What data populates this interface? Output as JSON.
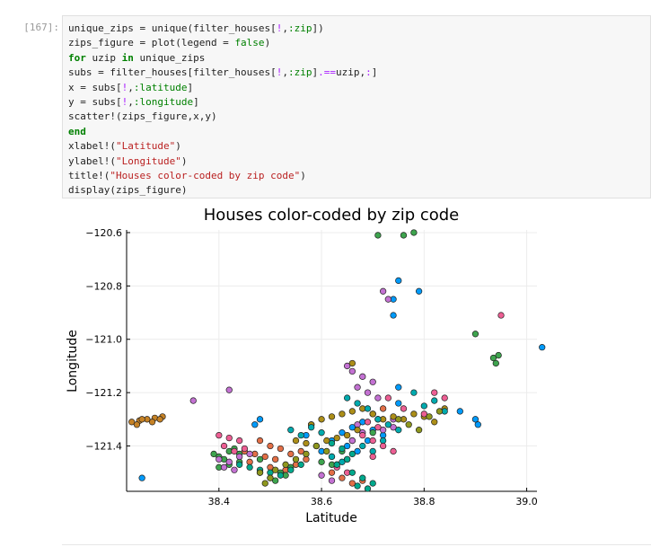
{
  "cell": {
    "prompt": "[167]:",
    "code_lines": [
      [
        {
          "t": "unique_zips = unique(filter_houses["
        },
        {
          "t": "!",
          "c": "op"
        },
        {
          "t": ",",
          "c": ""
        },
        {
          "t": ":zip",
          "c": "sym"
        },
        {
          "t": "])"
        }
      ],
      [
        {
          "t": "zips_figure = plot(legend = "
        },
        {
          "t": "false",
          "c": "sym"
        },
        {
          "t": ")"
        }
      ],
      [
        {
          "t": "for",
          "c": "kw"
        },
        {
          "t": " uzip "
        },
        {
          "t": "in",
          "c": "kw"
        },
        {
          "t": " unique_zips"
        }
      ],
      [
        {
          "t": "subs = filter_houses[filter_houses["
        },
        {
          "t": "!",
          "c": "op"
        },
        {
          "t": ","
        },
        {
          "t": ":zip",
          "c": "sym"
        },
        {
          "t": "]"
        },
        {
          "t": ".==",
          "c": "op"
        },
        {
          "t": "uzip,"
        },
        {
          "t": ":",
          "c": "op"
        },
        {
          "t": "]"
        }
      ],
      [
        {
          "t": "x = subs["
        },
        {
          "t": "!",
          "c": "op"
        },
        {
          "t": ","
        },
        {
          "t": ":latitude",
          "c": "sym"
        },
        {
          "t": "]"
        }
      ],
      [
        {
          "t": "y = subs["
        },
        {
          "t": "!",
          "c": "op"
        },
        {
          "t": ","
        },
        {
          "t": ":longitude",
          "c": "sym"
        },
        {
          "t": "]"
        }
      ],
      [
        {
          "t": "scatter!(zips_figure,x,y)"
        }
      ],
      [
        {
          "t": "end",
          "c": "kw"
        }
      ],
      [
        {
          "t": "xlabel!("
        },
        {
          "t": "\"Latitude\"",
          "c": "str"
        },
        {
          "t": ")"
        }
      ],
      [
        {
          "t": "ylabel!("
        },
        {
          "t": "\"Longitude\"",
          "c": "str"
        },
        {
          "t": ")"
        }
      ],
      [
        {
          "t": "title!("
        },
        {
          "t": "\"Houses color-coded by zip code\"",
          "c": "str"
        },
        {
          "t": ")"
        }
      ],
      [
        {
          "t": "display(zips_figure)"
        }
      ]
    ]
  },
  "chart_data": {
    "type": "scatter",
    "title": "Houses color-coded by zip code",
    "xlabel": "Latitude",
    "ylabel": "Longitude",
    "xlim": [
      38.22,
      39.02
    ],
    "ylim": [
      -121.57,
      -120.59
    ],
    "xticks": [
      38.4,
      38.6,
      38.8,
      39.0
    ],
    "xtick_labels": [
      "38.4",
      "38.6",
      "38.8",
      "39.0"
    ],
    "yticks": [
      -120.6,
      -120.8,
      -121.0,
      -121.2,
      -121.4
    ],
    "ytick_labels": [
      "−120.6",
      "−120.8",
      "−121.0",
      "−121.2",
      "−121.4"
    ],
    "grid": true,
    "legend": false,
    "palette": [
      "#009AFA",
      "#E36F47",
      "#3EA44E",
      "#C371D2",
      "#AC8E18",
      "#00AAAE",
      "#ED5E93",
      "#C68225",
      "#00A98D",
      "#8E971D"
    ],
    "series": [
      {
        "color_index": 7,
        "x": [
          38.23,
          38.245,
          38.26,
          38.275,
          38.29,
          38.25,
          38.27,
          38.285,
          38.24
        ],
        "y": [
          -121.31,
          -121.305,
          -121.3,
          -121.295,
          -121.29,
          -121.3,
          -121.31,
          -121.3,
          -121.32
        ]
      },
      {
        "color_index": 0,
        "x": [
          38.25,
          38.47,
          38.48,
          38.6,
          38.62,
          38.64,
          38.66,
          38.68,
          38.7,
          38.72,
          38.65,
          38.67,
          38.69,
          38.71,
          38.75,
          38.9,
          38.905,
          38.87,
          38.74,
          38.75,
          38.79,
          38.74,
          38.75,
          38.57,
          38.58,
          39.03
        ],
        "y": [
          -121.52,
          -121.32,
          -121.3,
          -121.42,
          -121.38,
          -121.35,
          -121.33,
          -121.31,
          -121.34,
          -121.36,
          -121.4,
          -121.42,
          -121.38,
          -121.3,
          -121.24,
          -121.3,
          -121.32,
          -121.27,
          -120.85,
          -120.78,
          -120.82,
          -120.91,
          -121.18,
          -121.36,
          -121.32,
          -121.03
        ]
      },
      {
        "color_index": 1,
        "x": [
          38.45,
          38.47,
          38.49,
          38.51,
          38.5,
          38.48,
          38.52,
          38.54,
          38.46,
          38.5,
          38.53,
          38.55,
          38.57,
          38.56,
          38.62,
          38.64,
          38.66,
          38.68,
          38.63,
          38.65,
          38.7,
          38.72
        ],
        "y": [
          -121.42,
          -121.43,
          -121.44,
          -121.45,
          -121.4,
          -121.38,
          -121.41,
          -121.43,
          -121.46,
          -121.48,
          -121.49,
          -121.47,
          -121.45,
          -121.42,
          -121.5,
          -121.52,
          -121.54,
          -121.53,
          -121.47,
          -121.45,
          -121.28,
          -121.26
        ]
      },
      {
        "color_index": 2,
        "x": [
          38.39,
          38.4,
          38.41,
          38.42,
          38.43,
          38.44,
          38.4,
          38.42,
          38.44,
          38.48,
          38.5,
          38.52,
          38.54,
          38.48,
          38.51,
          38.53,
          38.6,
          38.62,
          38.64,
          38.62,
          38.66,
          38.7,
          38.71,
          38.76,
          38.78,
          38.9,
          38.935,
          38.94,
          38.945
        ],
        "y": [
          -121.43,
          -121.44,
          -121.45,
          -121.42,
          -121.41,
          -121.43,
          -121.48,
          -121.47,
          -121.46,
          -121.5,
          -121.52,
          -121.5,
          -121.48,
          -121.45,
          -121.53,
          -121.51,
          -121.46,
          -121.44,
          -121.42,
          -121.47,
          -121.38,
          -121.35,
          -120.61,
          -120.61,
          -120.6,
          -120.98,
          -121.07,
          -121.09,
          -121.06
        ]
      },
      {
        "color_index": 3,
        "x": [
          38.4,
          38.42,
          38.44,
          38.46,
          38.41,
          38.43,
          38.65,
          38.66,
          38.68,
          38.7,
          38.67,
          38.69,
          38.71,
          38.67,
          38.68,
          38.66,
          38.72,
          38.74,
          38.73,
          38.72,
          38.74,
          38.35,
          38.42,
          38.6,
          38.62
        ],
        "y": [
          -121.45,
          -121.46,
          -121.44,
          -121.43,
          -121.48,
          -121.49,
          -121.1,
          -121.12,
          -121.14,
          -121.16,
          -121.18,
          -121.2,
          -121.22,
          -121.32,
          -121.35,
          -121.38,
          -121.34,
          -121.33,
          -120.85,
          -120.82,
          -121.3,
          -121.23,
          -121.19,
          -121.51,
          -121.53
        ]
      },
      {
        "color_index": 4,
        "x": [
          38.55,
          38.57,
          38.59,
          38.61,
          38.63,
          38.65,
          38.67,
          38.58,
          38.6,
          38.62,
          38.64,
          38.66,
          38.68,
          38.7,
          38.72,
          38.74,
          38.76,
          38.78,
          38.8,
          38.82,
          38.84,
          38.66
        ],
        "y": [
          -121.38,
          -121.39,
          -121.4,
          -121.38,
          -121.37,
          -121.36,
          -121.34,
          -121.32,
          -121.3,
          -121.29,
          -121.28,
          -121.27,
          -121.26,
          -121.28,
          -121.3,
          -121.29,
          -121.3,
          -121.28,
          -121.29,
          -121.31,
          -121.26,
          -121.09
        ]
      },
      {
        "color_index": 5,
        "x": [
          38.54,
          38.56,
          38.58,
          38.6,
          38.65,
          38.67,
          38.69,
          38.71,
          38.73,
          38.75,
          38.68,
          38.7,
          38.72,
          38.78,
          38.8,
          38.82,
          38.84,
          38.62,
          38.64
        ],
        "y": [
          -121.34,
          -121.36,
          -121.33,
          -121.35,
          -121.22,
          -121.24,
          -121.26,
          -121.3,
          -121.32,
          -121.34,
          -121.4,
          -121.42,
          -121.38,
          -121.2,
          -121.25,
          -121.23,
          -121.27,
          -121.44,
          -121.46
        ]
      },
      {
        "color_index": 6,
        "x": [
          38.4,
          38.42,
          38.44,
          38.41,
          38.43,
          38.45,
          38.68,
          38.7,
          38.72,
          38.74,
          38.7,
          38.71,
          38.69,
          38.73,
          38.76,
          38.8,
          38.82,
          38.84,
          38.95,
          38.63,
          38.65
        ],
        "y": [
          -121.36,
          -121.37,
          -121.38,
          -121.4,
          -121.42,
          -121.41,
          -121.36,
          -121.38,
          -121.4,
          -121.42,
          -121.44,
          -121.33,
          -121.31,
          -121.22,
          -121.26,
          -121.28,
          -121.2,
          -121.22,
          -120.91,
          -121.48,
          -121.5
        ]
      },
      {
        "color_index": 8,
        "x": [
          38.44,
          38.46,
          38.48,
          38.5,
          38.52,
          38.54,
          38.56,
          38.66,
          38.68,
          38.7,
          38.67,
          38.69,
          38.63,
          38.65,
          38.62,
          38.64,
          38.66
        ],
        "y": [
          -121.47,
          -121.48,
          -121.49,
          -121.5,
          -121.51,
          -121.49,
          -121.47,
          -121.5,
          -121.52,
          -121.54,
          -121.55,
          -121.56,
          -121.47,
          -121.45,
          -121.39,
          -121.41,
          -121.43
        ]
      },
      {
        "color_index": 9,
        "x": [
          38.48,
          38.5,
          38.49,
          38.51,
          38.53,
          38.55,
          38.57,
          38.75,
          38.77,
          38.79,
          38.81,
          38.83,
          38.59,
          38.61
        ],
        "y": [
          -121.5,
          -121.52,
          -121.54,
          -121.49,
          -121.47,
          -121.45,
          -121.43,
          -121.3,
          -121.32,
          -121.34,
          -121.29,
          -121.27,
          -121.4,
          -121.42
        ]
      }
    ]
  }
}
